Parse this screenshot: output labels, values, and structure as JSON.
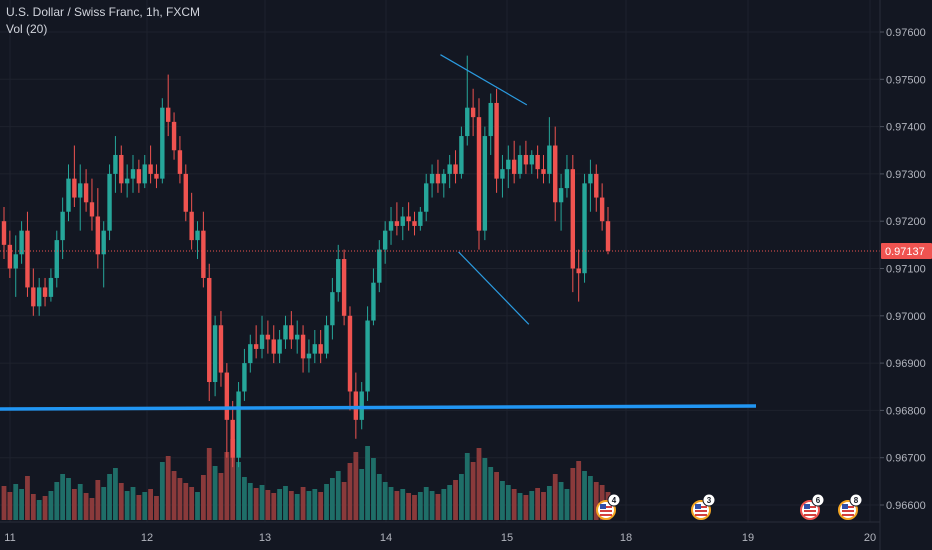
{
  "legend": {
    "title": "U.S. Dollar / Swiss Franc, 1h, FXCM",
    "indicator": "Vol (20)"
  },
  "current_price": "0.97137",
  "colors": {
    "background": "#131722",
    "grid": "#1e222d",
    "up": "#26a69a",
    "down": "#ef5350",
    "vol_up": "#1f6e68",
    "vol_down": "#8a3a3b",
    "support_line": "#2196f3",
    "pattern_line": "#2b9be0",
    "axis_text": "#b2b5be",
    "price_tag": "#ef5350"
  },
  "events": [
    {
      "count": "4",
      "icon": "us-flag-icon"
    },
    {
      "count": "3",
      "icon": "us-flag-icon"
    },
    {
      "count": "6",
      "icon": "us-flag-icon"
    },
    {
      "count": "8",
      "icon": "us-flag-icon"
    }
  ],
  "chart_data": {
    "type": "candlestick",
    "x_ticks": [
      "11",
      "12",
      "13",
      "14",
      "15",
      "18",
      "19",
      "20"
    ],
    "y_ticks": [
      "0.97600",
      "0.97500",
      "0.97400",
      "0.97300",
      "0.97200",
      "0.97100",
      "0.97000",
      "0.96900",
      "0.96800",
      "0.96700",
      "0.96600"
    ],
    "ylim": [
      0.9656,
      0.9764
    ],
    "last_price": 0.97137,
    "support_level": 0.96805,
    "pattern": {
      "upper": [
        [
          14.45,
          0.97552
        ],
        [
          15.5,
          0.97446
        ]
      ],
      "lower": [
        [
          14.6,
          0.97135
        ],
        [
          15.55,
          0.96982
        ]
      ]
    },
    "ohlc": [
      [
        0.972,
        0.9723,
        0.9712,
        0.9715
      ],
      [
        0.9715,
        0.9718,
        0.9708,
        0.971
      ],
      [
        0.971,
        0.9717,
        0.9704,
        0.9713
      ],
      [
        0.9713,
        0.972,
        0.9711,
        0.9718
      ],
      [
        0.9718,
        0.9722,
        0.9704,
        0.9706
      ],
      [
        0.9706,
        0.971,
        0.97,
        0.9702
      ],
      [
        0.9702,
        0.9708,
        0.97,
        0.9706
      ],
      [
        0.9706,
        0.9708,
        0.9702,
        0.9704
      ],
      [
        0.9704,
        0.971,
        0.9703,
        0.9708
      ],
      [
        0.9708,
        0.9718,
        0.9706,
        0.9716
      ],
      [
        0.9716,
        0.9725,
        0.9712,
        0.9722
      ],
      [
        0.9722,
        0.9732,
        0.972,
        0.9729
      ],
      [
        0.9729,
        0.9736,
        0.9723,
        0.9725
      ],
      [
        0.9725,
        0.9732,
        0.9718,
        0.9728
      ],
      [
        0.9728,
        0.9731,
        0.9722,
        0.9724
      ],
      [
        0.9724,
        0.9729,
        0.9718,
        0.9721
      ],
      [
        0.9721,
        0.9727,
        0.971,
        0.9713
      ],
      [
        0.9713,
        0.972,
        0.9706,
        0.9718
      ],
      [
        0.9718,
        0.9732,
        0.9716,
        0.973
      ],
      [
        0.973,
        0.9738,
        0.9726,
        0.9734
      ],
      [
        0.9734,
        0.9736,
        0.9726,
        0.9728
      ],
      [
        0.9728,
        0.9732,
        0.9725,
        0.9729
      ],
      [
        0.9729,
        0.9734,
        0.9726,
        0.9731
      ],
      [
        0.9731,
        0.9733,
        0.9726,
        0.9728
      ],
      [
        0.9728,
        0.9734,
        0.9727,
        0.9732
      ],
      [
        0.9732,
        0.9736,
        0.9728,
        0.973
      ],
      [
        0.973,
        0.9732,
        0.9727,
        0.9729
      ],
      [
        0.9729,
        0.9746,
        0.9728,
        0.9744
      ],
      [
        0.9744,
        0.9751,
        0.9738,
        0.9741
      ],
      [
        0.9741,
        0.9743,
        0.9733,
        0.9735
      ],
      [
        0.9735,
        0.9738,
        0.9728,
        0.973
      ],
      [
        0.973,
        0.9732,
        0.972,
        0.9722
      ],
      [
        0.9722,
        0.9726,
        0.9714,
        0.9716
      ],
      [
        0.9716,
        0.972,
        0.9712,
        0.9718
      ],
      [
        0.9718,
        0.9722,
        0.9706,
        0.9708
      ],
      [
        0.9708,
        0.9711,
        0.9682,
        0.9686
      ],
      [
        0.9686,
        0.97,
        0.9683,
        0.9698
      ],
      [
        0.9698,
        0.9701,
        0.9685,
        0.9688
      ],
      [
        0.9688,
        0.969,
        0.967,
        0.9678
      ],
      [
        0.9678,
        0.9682,
        0.9668,
        0.967
      ],
      [
        0.967,
        0.9686,
        0.9668,
        0.9684
      ],
      [
        0.9684,
        0.9693,
        0.9682,
        0.969
      ],
      [
        0.969,
        0.9696,
        0.9688,
        0.9694
      ],
      [
        0.9694,
        0.9698,
        0.9691,
        0.9693
      ],
      [
        0.9693,
        0.97,
        0.9691,
        0.9696
      ],
      [
        0.9696,
        0.9699,
        0.9692,
        0.9695
      ],
      [
        0.9695,
        0.9698,
        0.969,
        0.9692
      ],
      [
        0.9692,
        0.9697,
        0.969,
        0.9695
      ],
      [
        0.9695,
        0.97,
        0.9693,
        0.9698
      ],
      [
        0.9698,
        0.9701,
        0.9693,
        0.9695
      ],
      [
        0.9695,
        0.9699,
        0.9692,
        0.9696
      ],
      [
        0.9696,
        0.9698,
        0.9688,
        0.9691
      ],
      [
        0.9691,
        0.9695,
        0.9688,
        0.9692
      ],
      [
        0.9692,
        0.9697,
        0.969,
        0.9694
      ],
      [
        0.9694,
        0.9697,
        0.969,
        0.9692
      ],
      [
        0.9692,
        0.97,
        0.9691,
        0.9698
      ],
      [
        0.9698,
        0.9708,
        0.9695,
        0.9705
      ],
      [
        0.9705,
        0.9715,
        0.9703,
        0.9712
      ],
      [
        0.9712,
        0.9714,
        0.9698,
        0.97
      ],
      [
        0.97,
        0.9702,
        0.968,
        0.9684
      ],
      [
        0.9684,
        0.9688,
        0.9674,
        0.9678
      ],
      [
        0.9678,
        0.9686,
        0.9676,
        0.9684
      ],
      [
        0.9684,
        0.9702,
        0.9682,
        0.9699
      ],
      [
        0.9699,
        0.971,
        0.9698,
        0.9707
      ],
      [
        0.9707,
        0.9716,
        0.9705,
        0.9714
      ],
      [
        0.9714,
        0.972,
        0.9711,
        0.9718
      ],
      [
        0.9718,
        0.9723,
        0.9715,
        0.972
      ],
      [
        0.972,
        0.9724,
        0.9717,
        0.9719
      ],
      [
        0.9719,
        0.9723,
        0.9716,
        0.9721
      ],
      [
        0.9721,
        0.9724,
        0.9718,
        0.972
      ],
      [
        0.972,
        0.9722,
        0.9717,
        0.9719
      ],
      [
        0.9719,
        0.9723,
        0.9718,
        0.9722
      ],
      [
        0.9722,
        0.973,
        0.972,
        0.9728
      ],
      [
        0.9728,
        0.9732,
        0.9725,
        0.973
      ],
      [
        0.973,
        0.9733,
        0.9726,
        0.9728
      ],
      [
        0.9728,
        0.9731,
        0.9725,
        0.973
      ],
      [
        0.973,
        0.9734,
        0.9727,
        0.9732
      ],
      [
        0.9732,
        0.9735,
        0.9728,
        0.973
      ],
      [
        0.973,
        0.974,
        0.9729,
        0.9738
      ],
      [
        0.9738,
        0.9755,
        0.9736,
        0.9744
      ],
      [
        0.9744,
        0.9748,
        0.9738,
        0.9742
      ],
      [
        0.9742,
        0.9746,
        0.9714,
        0.9718
      ],
      [
        0.9718,
        0.974,
        0.9716,
        0.9738
      ],
      [
        0.9738,
        0.9747,
        0.9734,
        0.9745
      ],
      [
        0.9745,
        0.9748,
        0.9726,
        0.9729
      ],
      [
        0.9729,
        0.9734,
        0.9725,
        0.9731
      ],
      [
        0.9731,
        0.9736,
        0.9727,
        0.9733
      ],
      [
        0.9733,
        0.9737,
        0.9728,
        0.973
      ],
      [
        0.973,
        0.9736,
        0.9729,
        0.9734
      ],
      [
        0.9734,
        0.9737,
        0.973,
        0.9732
      ],
      [
        0.9732,
        0.9735,
        0.973,
        0.9734
      ],
      [
        0.9734,
        0.9736,
        0.9729,
        0.9731
      ],
      [
        0.9731,
        0.9734,
        0.9728,
        0.973
      ],
      [
        0.973,
        0.9742,
        0.9728,
        0.9736
      ],
      [
        0.9736,
        0.974,
        0.972,
        0.9724
      ],
      [
        0.9724,
        0.973,
        0.9718,
        0.9727
      ],
      [
        0.9727,
        0.9734,
        0.9725,
        0.9731
      ],
      [
        0.9731,
        0.9734,
        0.9705,
        0.971
      ],
      [
        0.971,
        0.9714,
        0.9703,
        0.9709
      ],
      [
        0.9709,
        0.973,
        0.9707,
        0.9728
      ],
      [
        0.9728,
        0.9733,
        0.9722,
        0.973
      ],
      [
        0.973,
        0.9732,
        0.9722,
        0.9725
      ],
      [
        0.9725,
        0.9728,
        0.9718,
        0.972
      ],
      [
        0.972,
        0.9723,
        0.9713,
        0.97137
      ]
    ],
    "volume": [
      34,
      28,
      36,
      31,
      44,
      26,
      20,
      24,
      29,
      38,
      46,
      42,
      31,
      36,
      27,
      22,
      40,
      33,
      46,
      52,
      37,
      29,
      33,
      25,
      28,
      31,
      24,
      58,
      64,
      49,
      42,
      37,
      33,
      28,
      45,
      72,
      54,
      47,
      68,
      81,
      58,
      43,
      37,
      32,
      35,
      30,
      27,
      31,
      34,
      29,
      26,
      33,
      29,
      31,
      28,
      36,
      42,
      49,
      38,
      57,
      68,
      51,
      74,
      62,
      46,
      38,
      33,
      29,
      31,
      27,
      25,
      28,
      33,
      29,
      26,
      31,
      35,
      40,
      46,
      67,
      58,
      72,
      62,
      53,
      48,
      39,
      35,
      31,
      27,
      25,
      29,
      32,
      28,
      34,
      46,
      38,
      31,
      52,
      59,
      49,
      44,
      38,
      35,
      28
    ]
  }
}
